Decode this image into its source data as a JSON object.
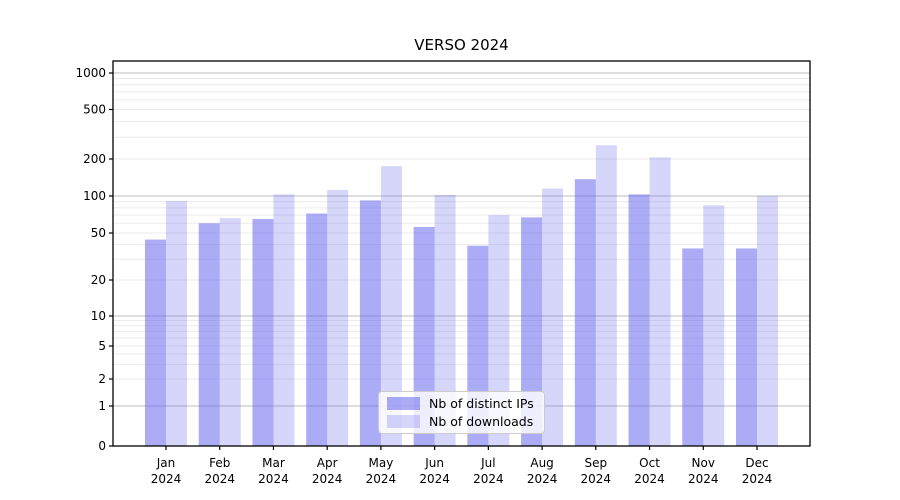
{
  "chart_data": {
    "type": "bar",
    "title": "VERSO 2024",
    "categories": [
      "Jan",
      "Feb",
      "Mar",
      "Apr",
      "May",
      "Jun",
      "Jul",
      "Aug",
      "Sep",
      "Oct",
      "Nov",
      "Dec"
    ],
    "category_year": "2024",
    "series": [
      {
        "name": "Nb of distinct IPs",
        "fill": "rgba(102,102,238,0.55)",
        "values": [
          44,
          60,
          65,
          72,
          92,
          56,
          39,
          67,
          137,
          103,
          37,
          37
        ]
      },
      {
        "name": "Nb of downloads",
        "fill": "rgba(102,102,238,0.27)",
        "values": [
          91,
          66,
          103,
          112,
          175,
          102,
          70,
          115,
          258,
          206,
          84,
          100
        ]
      }
    ],
    "yticks": [
      0,
      1,
      2,
      5,
      10,
      20,
      50,
      100,
      200,
      500,
      1000
    ],
    "yscale": "symlog",
    "ylim": [
      0,
      1200
    ],
    "xlabel": "",
    "ylabel": "",
    "grid": true,
    "legend_position": "lower center"
  },
  "colors": {
    "major_grid": "#bdbdbd",
    "minor_grid": "#ebebeb",
    "spine": "#000000",
    "text": "#000000",
    "background": "#ffffff"
  }
}
